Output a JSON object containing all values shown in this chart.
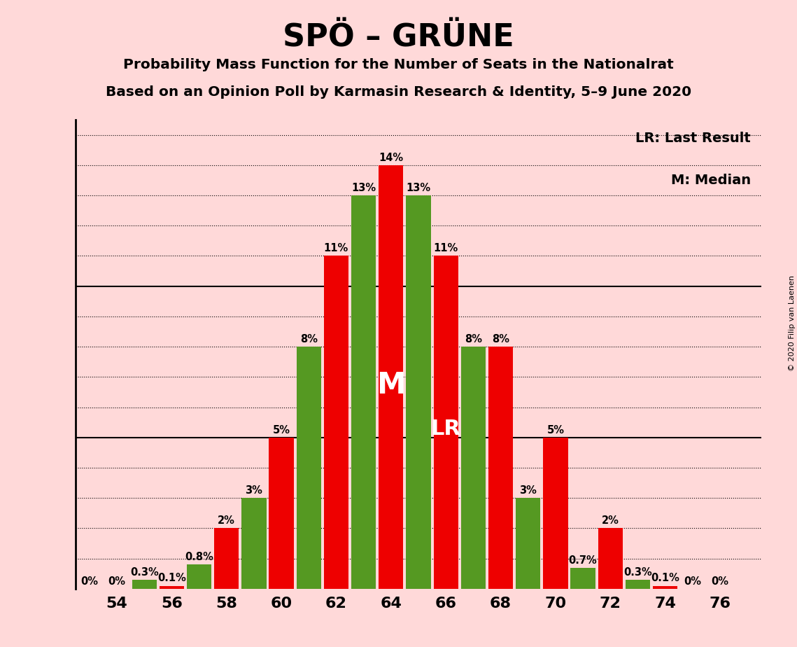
{
  "title": "SPÖ – GRÜNE",
  "subtitle1": "Probability Mass Function for the Number of Seats in the Nationalrat",
  "subtitle2": "Based on an Opinion Poll by Karmasin Research & Identity, 5–9 June 2020",
  "copyright": "© 2020 Filip van Laenen",
  "x_ticks": [
    54,
    56,
    58,
    60,
    62,
    64,
    66,
    68,
    70,
    72,
    74,
    76
  ],
  "red_vals": [
    0.0,
    0.001,
    0.02,
    0.05,
    0.11,
    0.14,
    0.11,
    0.08,
    0.05,
    0.02,
    0.001,
    0.0
  ],
  "green_vals": [
    0.0,
    0.003,
    0.008,
    0.03,
    0.08,
    0.13,
    0.13,
    0.08,
    0.03,
    0.007,
    0.003,
    0.0
  ],
  "red_labels": [
    "0%",
    "0.1%",
    "2%",
    "5%",
    "11%",
    "14%",
    "11%",
    "8%",
    "5%",
    "2%",
    "0.1%",
    "0%"
  ],
  "green_labels": [
    "0%",
    "0.3%",
    "0.8%",
    "3%",
    "8%",
    "13%",
    "13%",
    "8%",
    "3%",
    "0.7%",
    "0.3%",
    "0%"
  ],
  "median_idx": 5,
  "lr_idx": 6,
  "red_color": "#EE0000",
  "green_color": "#559922",
  "background_color": "#FFD9D9",
  "bar_width": 0.9,
  "ymax": 0.155,
  "legend_lr": "LR: Last Result",
  "legend_m": "M: Median"
}
